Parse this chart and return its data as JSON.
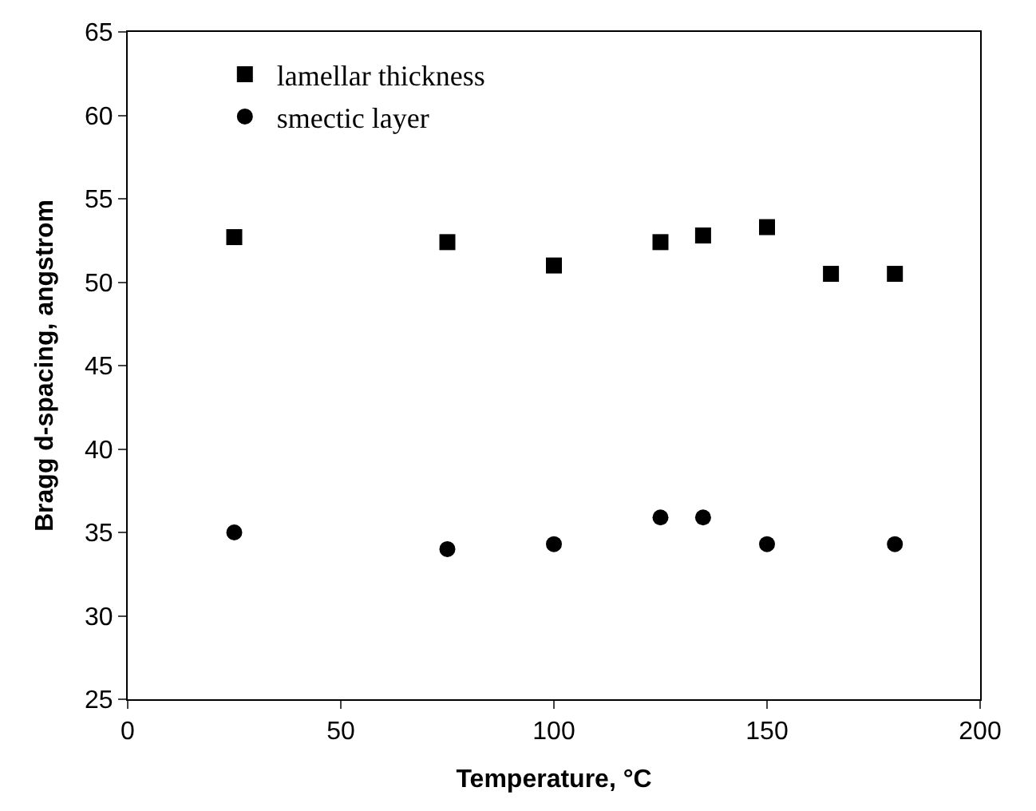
{
  "chart_data": {
    "type": "scatter",
    "xlabel": "Temperature, °C",
    "ylabel": "Bragg d-spacing, angstrom",
    "xlim": [
      0,
      200
    ],
    "xticks": [
      0,
      50,
      100,
      150,
      200
    ],
    "ylim": [
      25,
      65
    ],
    "yticks": [
      25,
      30,
      35,
      40,
      45,
      50,
      55,
      60,
      65
    ],
    "legend": "top left",
    "series": [
      {
        "name": "lamellar thickness",
        "color": "#000000",
        "marker": "square",
        "x": [
          25,
          75,
          100,
          125,
          135,
          150,
          165,
          180
        ],
        "values": [
          52.7,
          52.4,
          51.0,
          52.4,
          52.8,
          53.3,
          50.5,
          50.5
        ]
      },
      {
        "name": "smectic layer",
        "color": "#000000",
        "marker": "circle",
        "x": [
          25,
          75,
          100,
          125,
          135,
          150,
          180
        ],
        "values": [
          35.0,
          34.0,
          34.3,
          35.9,
          35.9,
          34.3,
          34.3
        ]
      }
    ]
  }
}
